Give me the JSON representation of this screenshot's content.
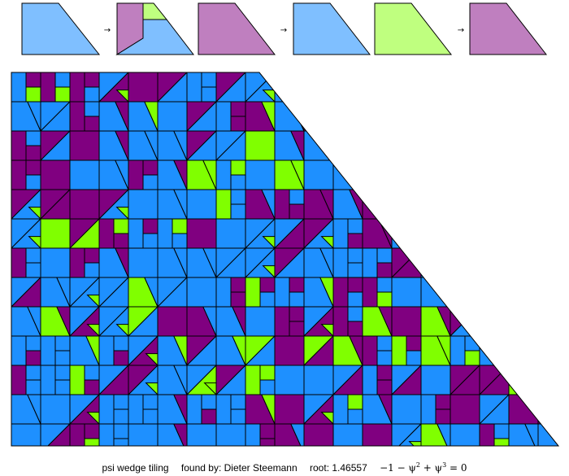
{
  "colors": {
    "light_blue": "#7fbfff",
    "mid_blue": "#1e90ff",
    "dark_purple": "#800080",
    "light_purple": "#bf7fbf",
    "light_green": "#bfff7f",
    "bright_green": "#80ff00",
    "edge": "#000000"
  },
  "rules": [
    {
      "source_color": "light_blue",
      "arrow": "→",
      "result_parts": [
        "light_purple",
        "light_green",
        "light_blue"
      ]
    },
    {
      "source_color": "light_purple",
      "arrow": "→",
      "result_parts": [
        "light_blue"
      ]
    },
    {
      "source_color": "light_green",
      "arrow": "→",
      "result_parts": [
        "light_purple"
      ]
    }
  ],
  "caption": {
    "title": "psi wedge tiling",
    "credit": "found by: Dieter Steemann",
    "root": "root: 1.46557",
    "formula_prefix": "−1 − ψ",
    "formula_exp1": "2",
    "formula_mid": " + ψ",
    "formula_exp2": "3",
    "formula_suffix": " = 0"
  }
}
